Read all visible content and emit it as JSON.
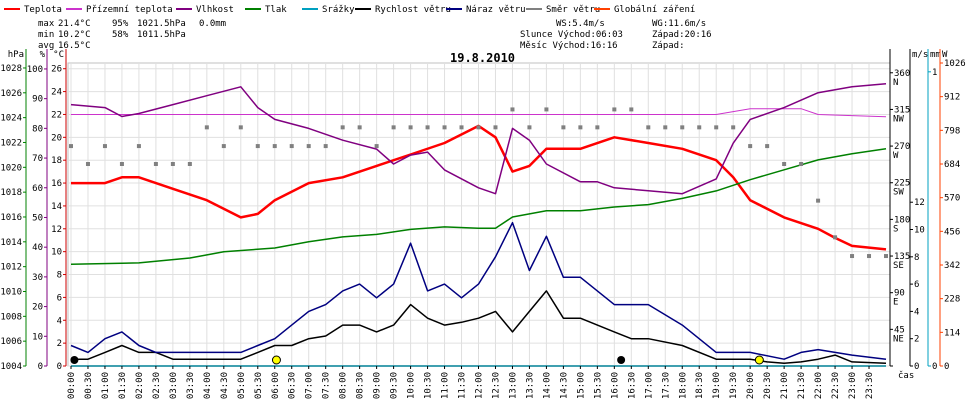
{
  "chart_data": {
    "type": "line",
    "title": "19.8.2010",
    "x_label": "čas",
    "x_ticks": [
      "00:00",
      "00:30",
      "01:00",
      "01:30",
      "02:00",
      "02:30",
      "03:00",
      "03:30",
      "04:00",
      "04:30",
      "05:00",
      "05:30",
      "06:00",
      "06:30",
      "07:00",
      "07:30",
      "08:00",
      "08:30",
      "09:00",
      "09:30",
      "10:00",
      "10:30",
      "11:00",
      "11:30",
      "12:00",
      "12:30",
      "13:00",
      "13:30",
      "14:00",
      "14:30",
      "15:00",
      "15:30",
      "16:00",
      "16:30",
      "17:00",
      "17:30",
      "18:00",
      "18:30",
      "19:00",
      "19:30",
      "20:00",
      "20:30",
      "21:00",
      "21:30",
      "22:00",
      "22:30",
      "23:00",
      "23:30"
    ],
    "axes": {
      "left_hpa": {
        "label": "hPa",
        "ticks": [
          1004,
          1006,
          1008,
          1010,
          1012,
          1014,
          1016,
          1018,
          1020,
          1022,
          1024,
          1026,
          1028
        ],
        "range": [
          1004,
          1028.4
        ],
        "color": "#008000"
      },
      "left_pct": {
        "label": "%",
        "ticks": [
          0,
          10,
          20,
          30,
          40,
          50,
          60,
          70,
          80,
          90,
          100
        ],
        "range": [
          0,
          102
        ],
        "color": "#800080"
      },
      "left_c": {
        "label": "°C",
        "ticks": [
          0,
          2,
          4,
          6,
          8,
          10,
          12,
          14,
          16,
          18,
          20,
          22,
          24,
          26
        ],
        "range": [
          0,
          26.5
        ],
        "color": "#cc0000"
      },
      "right_dir": {
        "ticks": [
          {
            "v": 0,
            "l": ""
          },
          {
            "v": 45,
            "l": "45"
          },
          {
            "v": 90,
            "l": "90"
          },
          {
            "v": 135,
            "l": "135"
          },
          {
            "v": 180,
            "l": "180"
          },
          {
            "v": 225,
            "l": "225"
          },
          {
            "v": 270,
            "l": "270"
          },
          {
            "v": 315,
            "l": "315"
          },
          {
            "v": 360,
            "l": "360"
          }
        ],
        "compass": [
          {
            "v": 45,
            "l": "NE"
          },
          {
            "v": 90,
            "l": "E"
          },
          {
            "v": 135,
            "l": "SE"
          },
          {
            "v": 180,
            "l": "S"
          },
          {
            "v": 225,
            "l": "SW"
          },
          {
            "v": 270,
            "l": "W"
          },
          {
            "v": 315,
            "l": "NW"
          },
          {
            "v": 360,
            "l": "N"
          }
        ],
        "range": [
          0,
          372
        ]
      },
      "right_ms": {
        "label": "m/s",
        "ticks": [
          0,
          2,
          4,
          6,
          8,
          10,
          12
        ],
        "range": [
          0,
          22.2
        ]
      },
      "right_mm": {
        "label": "mm",
        "ticks": [
          0,
          1
        ],
        "range": [
          0,
          1.03
        ],
        "color": "#00a0c0"
      },
      "right_w": {
        "label": "W",
        "ticks": [
          0,
          114,
          228,
          342,
          456,
          570,
          684,
          798,
          912,
          1026
        ],
        "range": [
          0,
          1026
        ],
        "color": "#ff4000"
      }
    },
    "legend": [
      {
        "name": "Teplota",
        "color": "#ff0000"
      },
      {
        "name": "Přízemní teplota",
        "color": "#cc33cc"
      },
      {
        "name": "Vlhkost",
        "color": "#800080"
      },
      {
        "name": "Tlak",
        "color": "#008000"
      },
      {
        "name": "Srážky",
        "color": "#00a0c0"
      },
      {
        "name": "Rychlost větru",
        "color": "#000000"
      },
      {
        "name": "Náraz větru",
        "color": "#000080"
      },
      {
        "name": "Směr větru",
        "color": "#808080"
      },
      {
        "name": "Globální záření",
        "color": "#ff4000"
      }
    ],
    "stats": {
      "max_label": "max",
      "max_t": "21.4°C",
      "max_h": "95%",
      "max_p": "1021.5hPa",
      "max_r": "0.0mm",
      "min_label": "min",
      "min_t": "10.2°C",
      "min_h": "58%",
      "min_p": "1011.5hPa",
      "avg_label": "avg",
      "avg_t": "16.5°C"
    },
    "info": {
      "ws": "WS:5.4m/s",
      "wg": "WG:11.6m/s",
      "slunce": "Slunce Východ:06:03",
      "slunce_z": "Západ:20:16",
      "mesic": "Měsíc  Východ:16:16",
      "mesic_z": "Západ:"
    },
    "series": [
      {
        "name": "Teplota",
        "axis": "left_c",
        "color": "#ff0000",
        "width": 2.5,
        "values": [
          [
            0,
            16
          ],
          [
            1,
            16
          ],
          [
            1.5,
            16.5
          ],
          [
            2,
            16.5
          ],
          [
            3,
            15.5
          ],
          [
            4,
            14.5
          ],
          [
            5,
            13
          ],
          [
            5.5,
            13.3
          ],
          [
            6,
            14.5
          ],
          [
            7,
            16
          ],
          [
            8,
            16.5
          ],
          [
            9,
            17.5
          ],
          [
            10,
            18.5
          ],
          [
            11,
            19.5
          ],
          [
            12,
            21
          ],
          [
            12.5,
            20
          ],
          [
            13,
            17
          ],
          [
            13.5,
            17.5
          ],
          [
            14,
            19
          ],
          [
            15,
            19
          ],
          [
            16,
            20
          ],
          [
            17,
            19.5
          ],
          [
            18,
            19
          ],
          [
            19,
            18
          ],
          [
            19.5,
            16.5
          ],
          [
            20,
            14.5
          ],
          [
            21,
            13
          ],
          [
            22,
            12
          ],
          [
            22.5,
            11.2
          ],
          [
            23,
            10.5
          ],
          [
            24,
            10.2
          ]
        ]
      },
      {
        "name": "Přízemní teplota",
        "axis": "left_c",
        "color": "#cc33cc",
        "width": 1,
        "values": [
          [
            0,
            22
          ],
          [
            6,
            22
          ],
          [
            12,
            22
          ],
          [
            16,
            22
          ],
          [
            19,
            22
          ],
          [
            20,
            22.5
          ],
          [
            21.5,
            22.5
          ],
          [
            22,
            22
          ],
          [
            24,
            21.8
          ]
        ]
      },
      {
        "name": "Vlhkost",
        "axis": "left_pct",
        "color": "#800080",
        "width": 1.5,
        "values": [
          [
            0,
            88
          ],
          [
            1,
            87
          ],
          [
            1.5,
            84
          ],
          [
            2,
            85
          ],
          [
            3,
            88
          ],
          [
            4,
            91
          ],
          [
            5,
            94
          ],
          [
            5.5,
            87
          ],
          [
            6,
            83
          ],
          [
            7,
            80
          ],
          [
            8,
            76
          ],
          [
            9,
            73
          ],
          [
            9.5,
            68
          ],
          [
            10,
            71
          ],
          [
            10.5,
            72
          ],
          [
            11,
            66
          ],
          [
            12,
            60
          ],
          [
            12.5,
            58
          ],
          [
            13,
            80
          ],
          [
            13.5,
            76
          ],
          [
            14,
            68
          ],
          [
            15,
            62
          ],
          [
            15.5,
            62
          ],
          [
            16,
            60
          ],
          [
            17,
            59
          ],
          [
            18,
            58
          ],
          [
            19,
            63
          ],
          [
            19.5,
            75
          ],
          [
            20,
            83
          ],
          [
            21,
            87
          ],
          [
            22,
            92
          ],
          [
            23,
            94
          ],
          [
            24,
            95
          ]
        ]
      },
      {
        "name": "Tlak",
        "axis": "left_hpa",
        "color": "#008000",
        "width": 1.5,
        "values": [
          [
            0,
            1012.2
          ],
          [
            2,
            1012.3
          ],
          [
            3.5,
            1012.7
          ],
          [
            4.5,
            1013.2
          ],
          [
            6,
            1013.5
          ],
          [
            7,
            1014
          ],
          [
            8,
            1014.4
          ],
          [
            9,
            1014.6
          ],
          [
            10,
            1015
          ],
          [
            11,
            1015.2
          ],
          [
            12,
            1015.1
          ],
          [
            12.5,
            1015.1
          ],
          [
            13,
            1016
          ],
          [
            14,
            1016.5
          ],
          [
            15,
            1016.5
          ],
          [
            16,
            1016.8
          ],
          [
            17,
            1017
          ],
          [
            18,
            1017.5
          ],
          [
            19,
            1018.1
          ],
          [
            20,
            1019
          ],
          [
            21,
            1019.8
          ],
          [
            22,
            1020.6
          ],
          [
            23,
            1021.1
          ],
          [
            24,
            1021.5
          ]
        ]
      },
      {
        "name": "Rychlost větru",
        "axis": "right_ms",
        "color": "#000000",
        "width": 1.5,
        "values": [
          [
            0,
            0.5
          ],
          [
            0.5,
            0.5
          ],
          [
            1,
            1
          ],
          [
            1.5,
            1.5
          ],
          [
            2,
            1
          ],
          [
            2.5,
            1
          ],
          [
            3,
            0.5
          ],
          [
            4,
            0.5
          ],
          [
            5,
            0.5
          ],
          [
            5.5,
            1
          ],
          [
            6,
            1.5
          ],
          [
            6.5,
            1.5
          ],
          [
            7,
            2
          ],
          [
            7.5,
            2.2
          ],
          [
            8,
            3
          ],
          [
            8.5,
            3
          ],
          [
            9,
            2.5
          ],
          [
            9.5,
            3
          ],
          [
            10,
            4.5
          ],
          [
            10.5,
            3.5
          ],
          [
            11,
            3
          ],
          [
            11.5,
            3.2
          ],
          [
            12,
            3.5
          ],
          [
            12.5,
            4
          ],
          [
            13,
            2.5
          ],
          [
            13.5,
            4
          ],
          [
            14,
            5.5
          ],
          [
            14.5,
            3.5
          ],
          [
            15,
            3.5
          ],
          [
            16,
            2.5
          ],
          [
            16.5,
            2
          ],
          [
            17,
            2
          ],
          [
            18,
            1.5
          ],
          [
            19,
            0.5
          ],
          [
            20,
            0.5
          ],
          [
            20.5,
            0.3
          ],
          [
            21,
            0.2
          ],
          [
            21.5,
            0.3
          ],
          [
            22,
            0.5
          ],
          [
            22.5,
            0.8
          ],
          [
            23,
            0.3
          ],
          [
            24,
            0.2
          ]
        ]
      },
      {
        "name": "Náraz větru",
        "axis": "right_ms",
        "color": "#000080",
        "width": 1.5,
        "values": [
          [
            0,
            1.5
          ],
          [
            0.5,
            1
          ],
          [
            1,
            2
          ],
          [
            1.5,
            2.5
          ],
          [
            2,
            1.5
          ],
          [
            2.5,
            1
          ],
          [
            3,
            1
          ],
          [
            4,
            1
          ],
          [
            5,
            1
          ],
          [
            5.5,
            1.5
          ],
          [
            6,
            2
          ],
          [
            6.5,
            3
          ],
          [
            7,
            4
          ],
          [
            7.5,
            4.5
          ],
          [
            8,
            5.5
          ],
          [
            8.5,
            6
          ],
          [
            9,
            5
          ],
          [
            9.5,
            6
          ],
          [
            10,
            9
          ],
          [
            10.5,
            5.5
          ],
          [
            11,
            6
          ],
          [
            11.5,
            5
          ],
          [
            12,
            6
          ],
          [
            12.5,
            8
          ],
          [
            13,
            10.5
          ],
          [
            13.5,
            7
          ],
          [
            14,
            9.5
          ],
          [
            14.5,
            6.5
          ],
          [
            15,
            6.5
          ],
          [
            16,
            4.5
          ],
          [
            16.5,
            4.5
          ],
          [
            17,
            4.5
          ],
          [
            18,
            3
          ],
          [
            19,
            1
          ],
          [
            20,
            1
          ],
          [
            21,
            0.5
          ],
          [
            21.5,
            1
          ],
          [
            22,
            1.2
          ],
          [
            22.5,
            1
          ],
          [
            23,
            0.8
          ],
          [
            24,
            0.5
          ]
        ]
      },
      {
        "name": "Globální záření",
        "axis": "right_w",
        "color": "#ff4000",
        "width": 1.5,
        "values": [
          [
            0,
            0
          ],
          [
            24,
            0
          ]
        ]
      },
      {
        "name": "Srážky",
        "axis": "right_mm",
        "color": "#00a0c0",
        "width": 1.5,
        "values": [
          [
            0,
            0
          ],
          [
            24,
            0
          ]
        ]
      }
    ],
    "wind_direction": {
      "axis": "right_dir",
      "color": "#808080",
      "values": [
        [
          0,
          270
        ],
        [
          0.5,
          248
        ],
        [
          1,
          270
        ],
        [
          1.5,
          248
        ],
        [
          2,
          270
        ],
        [
          2.5,
          248
        ],
        [
          3,
          248
        ],
        [
          3.5,
          248
        ],
        [
          4,
          293
        ],
        [
          4.5,
          270
        ],
        [
          5,
          293
        ],
        [
          5.5,
          270
        ],
        [
          6,
          270
        ],
        [
          6.5,
          270
        ],
        [
          7,
          270
        ],
        [
          7.5,
          270
        ],
        [
          8,
          293
        ],
        [
          8.5,
          293
        ],
        [
          9,
          270
        ],
        [
          9.5,
          293
        ],
        [
          10,
          293
        ],
        [
          10.5,
          293
        ],
        [
          11,
          293
        ],
        [
          11.5,
          293
        ],
        [
          12,
          293
        ],
        [
          12.5,
          293
        ],
        [
          13,
          315
        ],
        [
          13.5,
          293
        ],
        [
          14,
          315
        ],
        [
          14.5,
          293
        ],
        [
          15,
          293
        ],
        [
          15.5,
          293
        ],
        [
          16,
          315
        ],
        [
          16.5,
          315
        ],
        [
          17,
          293
        ],
        [
          17.5,
          293
        ],
        [
          18,
          293
        ],
        [
          18.5,
          293
        ],
        [
          19,
          293
        ],
        [
          19.5,
          293
        ],
        [
          20,
          270
        ],
        [
          20.5,
          270
        ],
        [
          21,
          248
        ],
        [
          21.5,
          248
        ],
        [
          22,
          203
        ],
        [
          22.5,
          158
        ],
        [
          23,
          135
        ],
        [
          23.5,
          135
        ],
        [
          24,
          135
        ]
      ]
    },
    "moon_markers": [
      {
        "x": 0.1,
        "color": "#000000"
      },
      {
        "x": 16.2,
        "color": "#000000"
      }
    ],
    "sun_markers": [
      {
        "x": 6.05,
        "color": "#ffff00"
      },
      {
        "x": 20.27,
        "color": "#ffff00"
      }
    ]
  }
}
